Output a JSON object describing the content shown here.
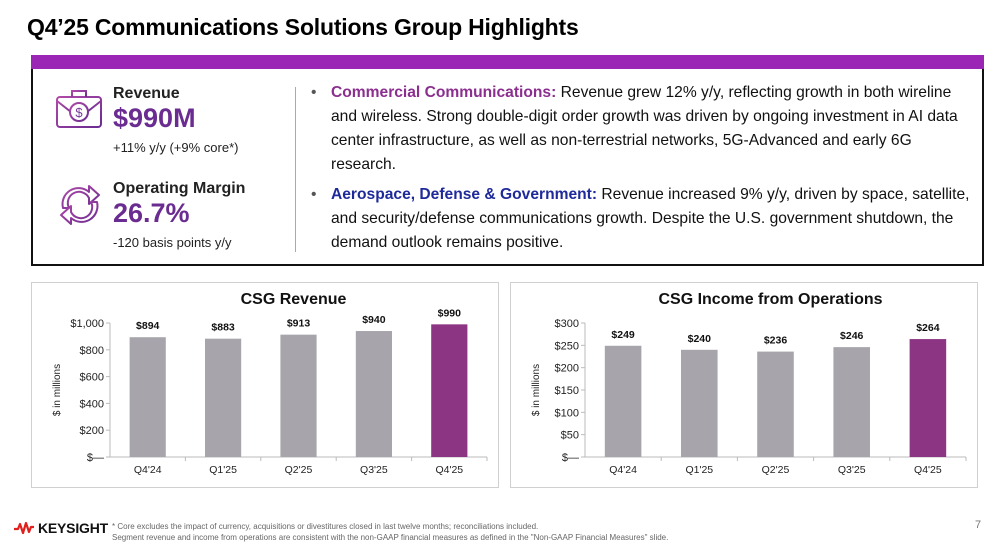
{
  "title": "Q4’25 Communications Solutions Group Highlights",
  "colors": {
    "accent": "#9b25b4",
    "metric_value": "#6a2c91",
    "bar_gray": "#a7a5ab",
    "bar_highlight": "#8b3583",
    "cc_label": "#8b2f8f",
    "adg_label": "#1f2a9a"
  },
  "metrics": [
    {
      "icon": "money-briefcase-icon",
      "label": "Revenue",
      "value": "$990M",
      "sub": "+11% y/y (+9% core*)"
    },
    {
      "icon": "refresh-arrows-icon",
      "label": "Operating Margin",
      "value": "26.7%",
      "sub": "-120 basis points y/y"
    }
  ],
  "bullets": [
    {
      "label": "Commercial Communications:",
      "text": " Revenue grew 12% y/y, reflecting growth in both wireline and wireless.  Strong double-digit order growth was driven by ongoing investment in AI data center infrastructure, as well as non-terrestrial networks, 5G-Advanced and early 6G research."
    },
    {
      "label": "Aerospace, Defense & Government:",
      "text": " Revenue increased 9% y/y, driven by space, satellite, and security/defense communications growth. Despite the U.S. government shutdown, the demand outlook remains positive."
    }
  ],
  "chart_data": [
    {
      "type": "bar",
      "title": "CSG Revenue",
      "xlabel": "",
      "ylabel": "$ in millions",
      "categories": [
        "Q4'24",
        "Q1'25",
        "Q2'25",
        "Q3'25",
        "Q4'25"
      ],
      "values": [
        894,
        883,
        913,
        940,
        990
      ],
      "data_labels": [
        "$894",
        "$883",
        "$913",
        "$940",
        "$990"
      ],
      "ylim": [
        0,
        1000
      ],
      "yticks": [
        0,
        200,
        400,
        600,
        800,
        1000
      ],
      "ytick_labels": [
        "$—",
        "$200",
        "$400",
        "$600",
        "$800",
        "$1,000"
      ],
      "highlight_index": 4,
      "grid": false,
      "legend": "none"
    },
    {
      "type": "bar",
      "title": "CSG Income from Operations",
      "xlabel": "",
      "ylabel": "$ in millions",
      "categories": [
        "Q4'24",
        "Q1'25",
        "Q2'25",
        "Q3'25",
        "Q4'25"
      ],
      "values": [
        249,
        240,
        236,
        246,
        264
      ],
      "data_labels": [
        "$249",
        "$240",
        "$236",
        "$246",
        "$264"
      ],
      "ylim": [
        0,
        300
      ],
      "yticks": [
        0,
        50,
        100,
        150,
        200,
        250,
        300
      ],
      "ytick_labels": [
        "$—",
        "$50",
        "$100",
        "$150",
        "$200",
        "$250",
        "$300"
      ],
      "highlight_index": 4,
      "grid": false,
      "legend": "none"
    }
  ],
  "footer": {
    "brand": "KEYSIGHT",
    "footnote_line1": "* Core excludes the impact of currency, acquisitions or divestitures closed in last twelve months; reconciliations included.",
    "footnote_line2": "Segment revenue and income from operations are consistent with the non-GAAP financial measures as defined in the \"Non-GAAP Financial Measures\" slide.",
    "page_number": "7"
  }
}
